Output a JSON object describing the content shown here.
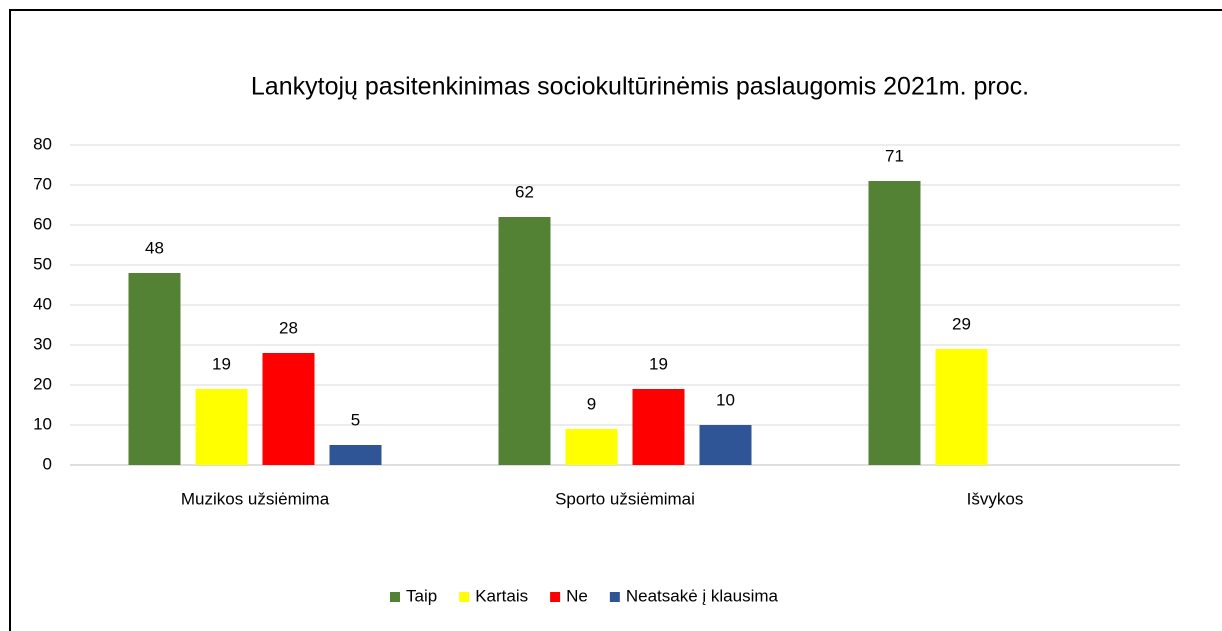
{
  "chart_data": {
    "type": "bar",
    "title": "Lankytojų pasitenkinimas sociokultūrinėmis paslaugomis 2021m. proc.",
    "categories": [
      "Muzikos užsiėmima",
      "Sporto užsiėmimai",
      "Išvykos"
    ],
    "series": [
      {
        "name": "Taip",
        "color": "#548235",
        "values": [
          48,
          62,
          71
        ]
      },
      {
        "name": "Kartais",
        "color": "#ffff00",
        "values": [
          19,
          9,
          29
        ]
      },
      {
        "name": "Ne",
        "color": "#ff0000",
        "values": [
          28,
          19,
          null
        ]
      },
      {
        "name": "Neatsakė į klausima",
        "color": "#2f5597",
        "values": [
          5,
          10,
          null
        ]
      }
    ],
    "ylim": [
      0,
      80
    ],
    "yticks": [
      0,
      10,
      20,
      30,
      40,
      50,
      60,
      70,
      80
    ],
    "grid": true,
    "legend": "bottom"
  }
}
